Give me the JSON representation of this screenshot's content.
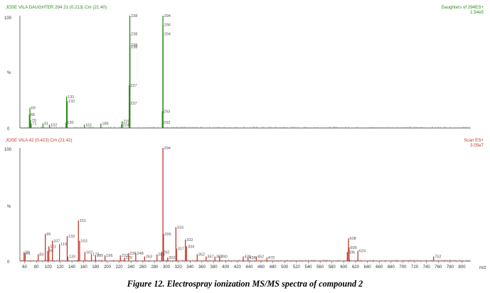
{
  "caption": "Figure 12. Electrospray ionization MS/MS spectra of compound 2",
  "colors": {
    "top": "#2e8b1e",
    "bottom": "#c0392b",
    "axis": "#333333"
  },
  "chart_data": [
    {
      "type": "bar",
      "title_left": "JOSE VILA DAUGHTER 294 21 (0.213) Cm (21:40)",
      "title_right": "Daughters of 294ES+",
      "intensity": "1.54e5",
      "ylabel": "%",
      "ylim": [
        0,
        100
      ],
      "yticks": [
        "100",
        "%",
        "0"
      ],
      "xlim": [
        52,
        815
      ],
      "peaks": [
        {
          "x": 69,
          "y": 18,
          "label": "69"
        },
        {
          "x": 68,
          "y": 12,
          "label": "68"
        },
        {
          "x": 70,
          "y": 7,
          "label": "70"
        },
        {
          "x": 71,
          "y": 4,
          "label": "71"
        },
        {
          "x": 91,
          "y": 4,
          "label": "91"
        },
        {
          "x": 102,
          "y": 3,
          "label": "102"
        },
        {
          "x": 130,
          "y": 5,
          "label": "130"
        },
        {
          "x": 131,
          "y": 28,
          "label": "131"
        },
        {
          "x": 132,
          "y": 24,
          "label": "132"
        },
        {
          "x": 161,
          "y": 3,
          "label": "161"
        },
        {
          "x": 189,
          "y": 4,
          "label": "189"
        },
        {
          "x": 224,
          "y": 3,
          "label": "224"
        },
        {
          "x": 225,
          "y": 6,
          "label": "225"
        },
        {
          "x": 237,
          "y": 22,
          "label": "237"
        },
        {
          "x": 237,
          "y": 38,
          "label": "237"
        },
        {
          "x": 238,
          "y": 100,
          "label": "238"
        },
        {
          "x": 238,
          "y": 84,
          "label": "238"
        },
        {
          "x": 238,
          "y": 74,
          "label": "238"
        },
        {
          "x": 238,
          "y": 72,
          "label": "238"
        },
        {
          "x": 293,
          "y": 5,
          "label": "293"
        },
        {
          "x": 293,
          "y": 15,
          "label": "293"
        },
        {
          "x": 294,
          "y": 100,
          "label": "294"
        },
        {
          "x": 294,
          "y": 92,
          "label": "294"
        },
        {
          "x": 294,
          "y": 84,
          "label": "294"
        }
      ]
    },
    {
      "type": "bar",
      "title_left": "JOSE VILA 42 (0.423) Cm (21:42)",
      "title_right": "Scan ES+",
      "intensity": "3.05e7",
      "ylabel": "%",
      "xlabel": "m/z",
      "ylim": [
        0,
        100
      ],
      "yticks": [
        "100",
        "%",
        "0"
      ],
      "xlim": [
        52,
        815
      ],
      "xticks": [
        60,
        80,
        100,
        120,
        140,
        160,
        180,
        200,
        220,
        240,
        260,
        280,
        300,
        320,
        340,
        360,
        380,
        400,
        420,
        440,
        460,
        480,
        500,
        520,
        540,
        560,
        580,
        600,
        620,
        640,
        660,
        680,
        700,
        720,
        740,
        760,
        780,
        800
      ],
      "peaks": [
        {
          "x": 59,
          "y": 8,
          "label": "59"
        },
        {
          "x": 61,
          "y": 7,
          "label": "61"
        },
        {
          "x": 83,
          "y": 6,
          "label": "83"
        },
        {
          "x": 95,
          "y": 24,
          "label": "95"
        },
        {
          "x": 99,
          "y": 9,
          "label": "99"
        },
        {
          "x": 101,
          "y": 13,
          "label": "101"
        },
        {
          "x": 107,
          "y": 18,
          "label": "107"
        },
        {
          "x": 119,
          "y": 15,
          "label": "119"
        },
        {
          "x": 132,
          "y": 22,
          "label": "132"
        },
        {
          "x": 133,
          "y": 4,
          "label": "133"
        },
        {
          "x": 151,
          "y": 36,
          "label": "151"
        },
        {
          "x": 153,
          "y": 18,
          "label": "153"
        },
        {
          "x": 162,
          "y": 8,
          "label": "162"
        },
        {
          "x": 173,
          "y": 6,
          "label": "173"
        },
        {
          "x": 180,
          "y": 5,
          "label": "180"
        },
        {
          "x": 196,
          "y": 5,
          "label": "196"
        },
        {
          "x": 222,
          "y": 5,
          "label": "222"
        },
        {
          "x": 229,
          "y": 3,
          "label": "229"
        },
        {
          "x": 236,
          "y": 7,
          "label": "236"
        },
        {
          "x": 248,
          "y": 7,
          "label": "248"
        },
        {
          "x": 263,
          "y": 4,
          "label": "263"
        },
        {
          "x": 284,
          "y": 6,
          "label": "284"
        },
        {
          "x": 292,
          "y": 8,
          "label": "292"
        },
        {
          "x": 294,
          "y": 100,
          "label": "294"
        },
        {
          "x": 295,
          "y": 24,
          "label": "295"
        },
        {
          "x": 302,
          "y": 3,
          "label": "302"
        },
        {
          "x": 316,
          "y": 30,
          "label": "316"
        },
        {
          "x": 317,
          "y": 11,
          "label": "317"
        },
        {
          "x": 332,
          "y": 19,
          "label": "332"
        },
        {
          "x": 334,
          "y": 13,
          "label": "334"
        },
        {
          "x": 352,
          "y": 6,
          "label": "352"
        },
        {
          "x": 367,
          "y": 4,
          "label": "367"
        },
        {
          "x": 382,
          "y": 4,
          "label": "382"
        },
        {
          "x": 390,
          "y": 4,
          "label": "390"
        },
        {
          "x": 430,
          "y": 4,
          "label": "430"
        },
        {
          "x": 438,
          "y": 3,
          "label": "438"
        },
        {
          "x": 452,
          "y": 4,
          "label": "452"
        },
        {
          "x": 470,
          "y": 3,
          "label": "470"
        },
        {
          "x": 606,
          "y": 8,
          "label": "606"
        },
        {
          "x": 608,
          "y": 20,
          "label": "608"
        },
        {
          "x": 609,
          "y": 12,
          "label": "609"
        },
        {
          "x": 624,
          "y": 9,
          "label": "624"
        },
        {
          "x": 752,
          "y": 4,
          "label": "752"
        }
      ]
    }
  ]
}
